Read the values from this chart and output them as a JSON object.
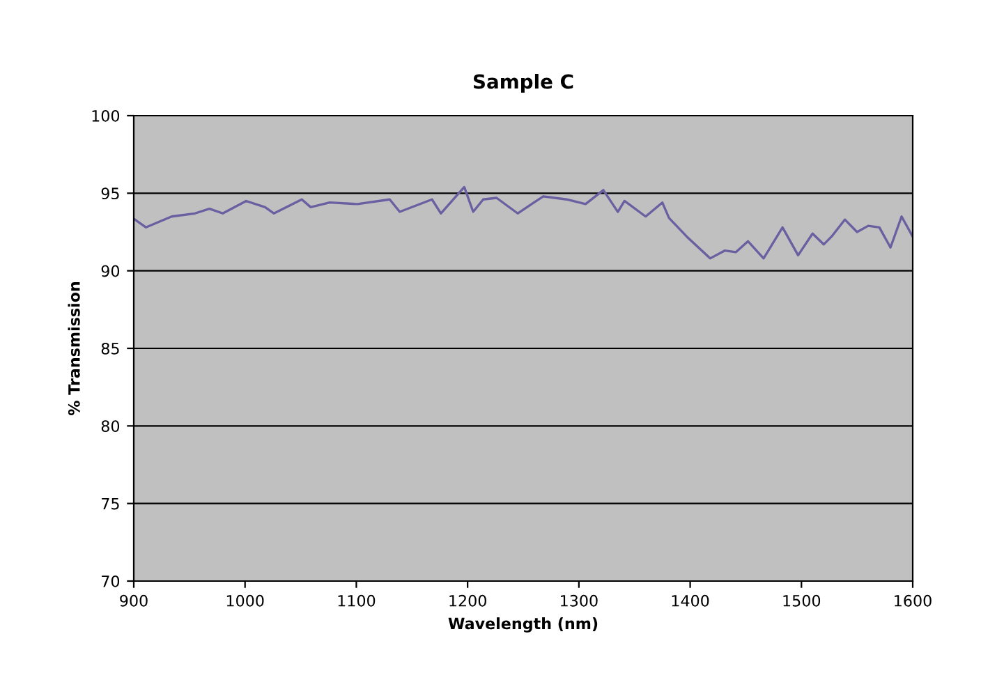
{
  "chart_data": {
    "type": "line",
    "title": "Sample C",
    "xlabel": "Wavelength (nm)",
    "ylabel": "% Transmission",
    "series": [
      {
        "color": "#6a5fa0",
        "x": [
          901,
          911,
          934,
          955,
          968,
          980,
          1001,
          1018,
          1026,
          1051,
          1059,
          1076,
          1101,
          1130,
          1139,
          1168,
          1176,
          1197,
          1205,
          1214,
          1226,
          1245,
          1268,
          1289,
          1306,
          1322,
          1335,
          1341,
          1360,
          1375,
          1381,
          1397,
          1418,
          1431,
          1441,
          1452,
          1466,
          1483,
          1497,
          1510,
          1520,
          1527,
          1539,
          1550,
          1560,
          1570,
          1580,
          1590,
          1600
        ],
        "values": [
          93.3,
          92.8,
          93.5,
          93.7,
          94.0,
          93.7,
          94.5,
          94.1,
          93.7,
          94.6,
          94.1,
          94.4,
          94.3,
          94.6,
          93.8,
          94.6,
          93.7,
          95.4,
          93.8,
          94.6,
          94.7,
          93.7,
          94.8,
          94.6,
          94.3,
          95.2,
          93.8,
          94.5,
          93.5,
          94.4,
          93.4,
          92.2,
          90.8,
          91.3,
          91.2,
          91.9,
          90.8,
          92.8,
          91.0,
          92.4,
          91.7,
          92.2,
          93.3,
          92.5,
          92.9,
          92.8,
          91.5,
          93.5,
          92.2
        ]
      }
    ],
    "xlim": [
      900,
      1600
    ],
    "xticks": [
      900,
      1000,
      1100,
      1200,
      1300,
      1400,
      1500,
      1600
    ],
    "ylim": [
      70,
      100
    ],
    "yticks": [
      70,
      75,
      80,
      85,
      90,
      95,
      100
    ],
    "grid": "y",
    "legend": false,
    "marker": "none",
    "line_style": "solid"
  }
}
